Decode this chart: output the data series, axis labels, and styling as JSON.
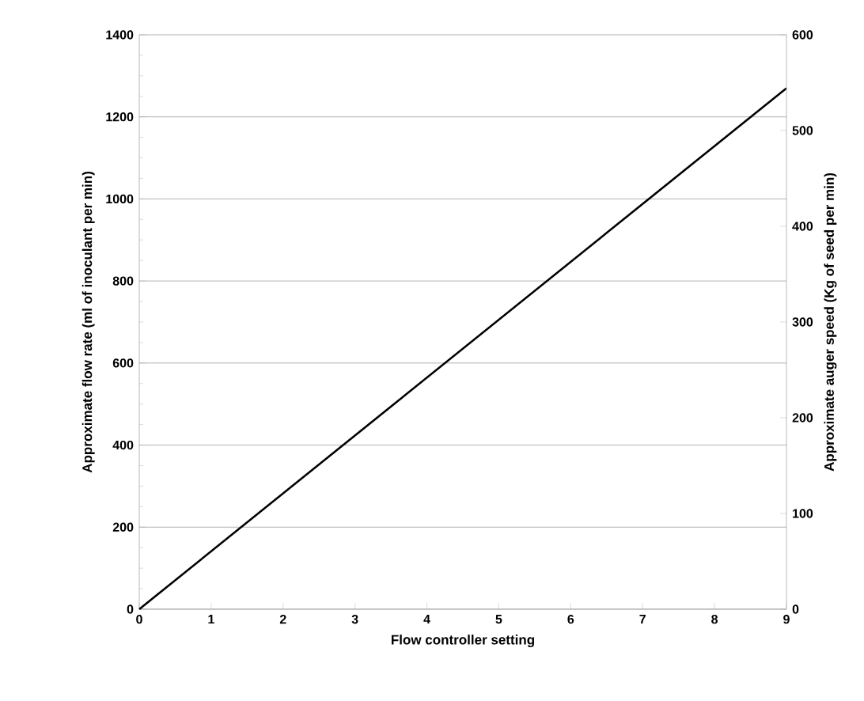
{
  "chart_data": {
    "type": "line",
    "xlabel": "Flow controller setting",
    "ylabel": "Approximate flow rate (ml of inoculant per min)",
    "y2label": "Approximate auger speed (Kg of seed per min)",
    "x": [
      0,
      9
    ],
    "series": [
      {
        "color": "#000000",
        "values": [
          0,
          1270
        ]
      }
    ],
    "xlim": [
      0,
      9
    ],
    "xticks": [
      0,
      1,
      2,
      3,
      4,
      5,
      6,
      7,
      8,
      9
    ],
    "ylim": [
      0,
      1400
    ],
    "yticks": [
      0,
      200,
      400,
      600,
      800,
      1000,
      1200,
      1400
    ],
    "y2lim": [
      0,
      600
    ],
    "y2ticks": [
      0,
      100,
      200,
      300,
      400,
      500,
      600
    ],
    "grid": "y",
    "marker": "none",
    "line_style": "solid"
  }
}
